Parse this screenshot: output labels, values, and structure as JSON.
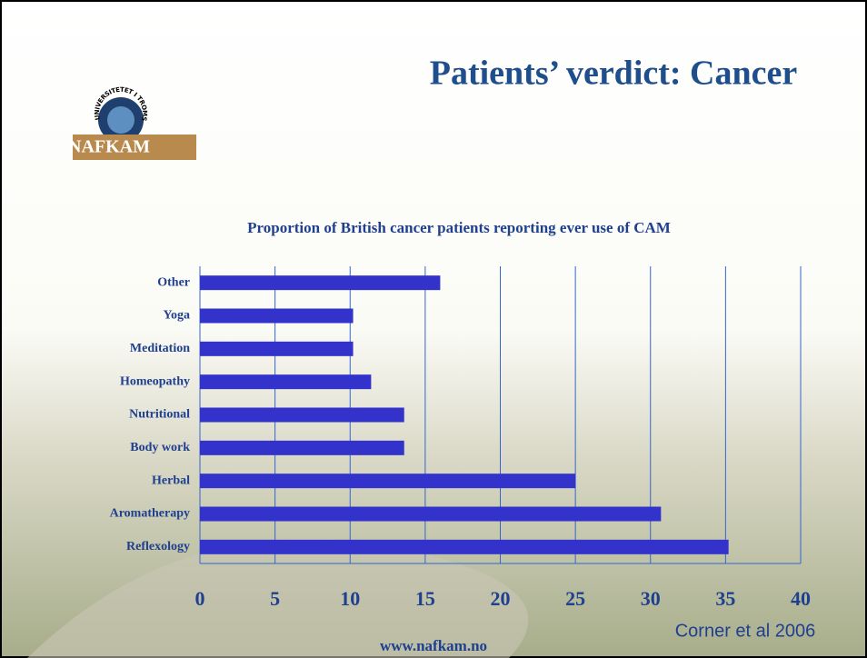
{
  "slide_title": "Patients’ verdict: Cancer",
  "logo": {
    "university": "UNIVERSITETET I TROMSØ",
    "brand": "NAFKAM"
  },
  "source": "Corner et al 2006",
  "footer": "www.nafkam.no",
  "chart_data": {
    "type": "hbar",
    "title": "Proportion of British cancer patients reporting ever use of CAM",
    "categories": [
      "Other",
      "Yoga",
      "Meditation",
      "Homeopathy",
      "Nutritional",
      "Body work",
      "Herbal",
      "Aromatherapy",
      "Reflexology"
    ],
    "values": [
      16,
      10.2,
      10.2,
      11.4,
      13.6,
      13.6,
      25,
      30.7,
      35.2
    ],
    "color": "#3333cc",
    "xlim": [
      0,
      40
    ],
    "xticks": [
      0,
      5,
      10,
      15,
      20,
      25,
      30,
      35,
      40
    ],
    "grid": true
  }
}
